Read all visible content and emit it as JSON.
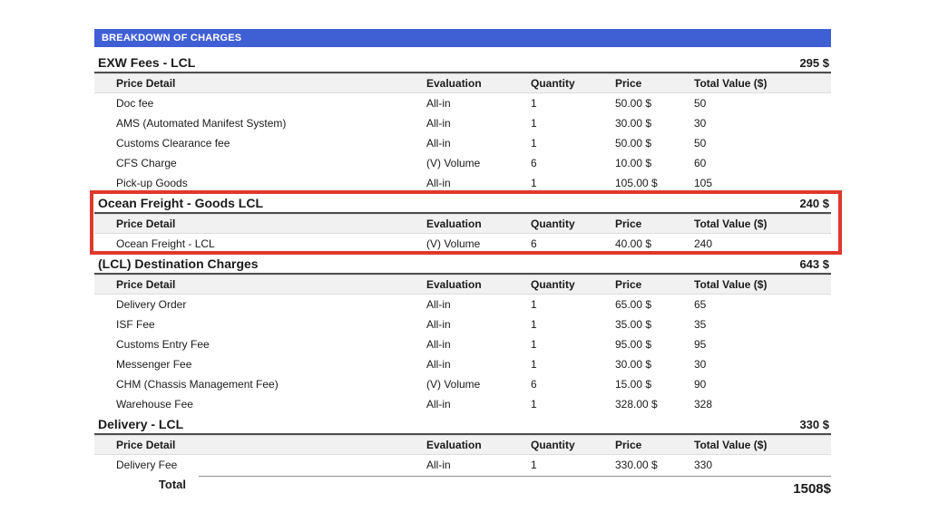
{
  "page": {
    "banner": {
      "label": "BREAKDOWN OF CHARGES",
      "bg_color": "#3f5fd5",
      "text_color": "#ffffff"
    },
    "columns": [
      "Price Detail",
      "Evaluation",
      "Quantity",
      "Price",
      "Total Value ($)"
    ],
    "row_keys": [
      "detail",
      "evaluation",
      "quantity",
      "price",
      "total_value"
    ],
    "highlight_color": "#e0382c",
    "sections": [
      {
        "title": "EXW Fees - LCL",
        "total": "295 $",
        "highlighted": false,
        "rows": [
          {
            "detail": "Doc fee",
            "evaluation": "All-in",
            "quantity": "1",
            "price": "50.00 $",
            "total_value": "50"
          },
          {
            "detail": "AMS (Automated Manifest System)",
            "evaluation": "All-in",
            "quantity": "1",
            "price": "30.00 $",
            "total_value": "30"
          },
          {
            "detail": "Customs Clearance fee",
            "evaluation": "All-in",
            "quantity": "1",
            "price": "50.00 $",
            "total_value": "50"
          },
          {
            "detail": "CFS Charge",
            "evaluation": "(V) Volume",
            "quantity": "6",
            "price": "10.00 $",
            "total_value": "60"
          },
          {
            "detail": "Pick-up Goods",
            "evaluation": "All-in",
            "quantity": "1",
            "price": "105.00 $",
            "total_value": "105"
          }
        ]
      },
      {
        "title": "Ocean Freight - Goods LCL",
        "total": "240 $",
        "highlighted": true,
        "rows": [
          {
            "detail": "Ocean Freight - LCL",
            "evaluation": "(V) Volume",
            "quantity": "6",
            "price": "40.00 $",
            "total_value": "240"
          }
        ]
      },
      {
        "title": "(LCL) Destination Charges",
        "total": "643 $",
        "highlighted": false,
        "rows": [
          {
            "detail": "Delivery Order",
            "evaluation": "All-in",
            "quantity": "1",
            "price": "65.00 $",
            "total_value": "65"
          },
          {
            "detail": "ISF Fee",
            "evaluation": "All-in",
            "quantity": "1",
            "price": "35.00 $",
            "total_value": "35"
          },
          {
            "detail": "Customs Entry Fee",
            "evaluation": "All-in",
            "quantity": "1",
            "price": "95.00 $",
            "total_value": "95"
          },
          {
            "detail": "Messenger Fee",
            "evaluation": "All-in",
            "quantity": "1",
            "price": "30.00 $",
            "total_value": "30"
          },
          {
            "detail": "CHM (Chassis Management Fee)",
            "evaluation": "(V) Volume",
            "quantity": "6",
            "price": "15.00 $",
            "total_value": "90"
          },
          {
            "detail": "Warehouse Fee",
            "evaluation": "All-in",
            "quantity": "1",
            "price": "328.00 $",
            "total_value": "328"
          }
        ]
      },
      {
        "title": "Delivery - LCL",
        "total": "330 $",
        "highlighted": false,
        "rows": [
          {
            "detail": "Delivery Fee",
            "evaluation": "All-in",
            "quantity": "1",
            "price": "330.00 $",
            "total_value": "330"
          }
        ]
      }
    ],
    "grand_total": {
      "label": "Total",
      "value": "1508$"
    }
  }
}
